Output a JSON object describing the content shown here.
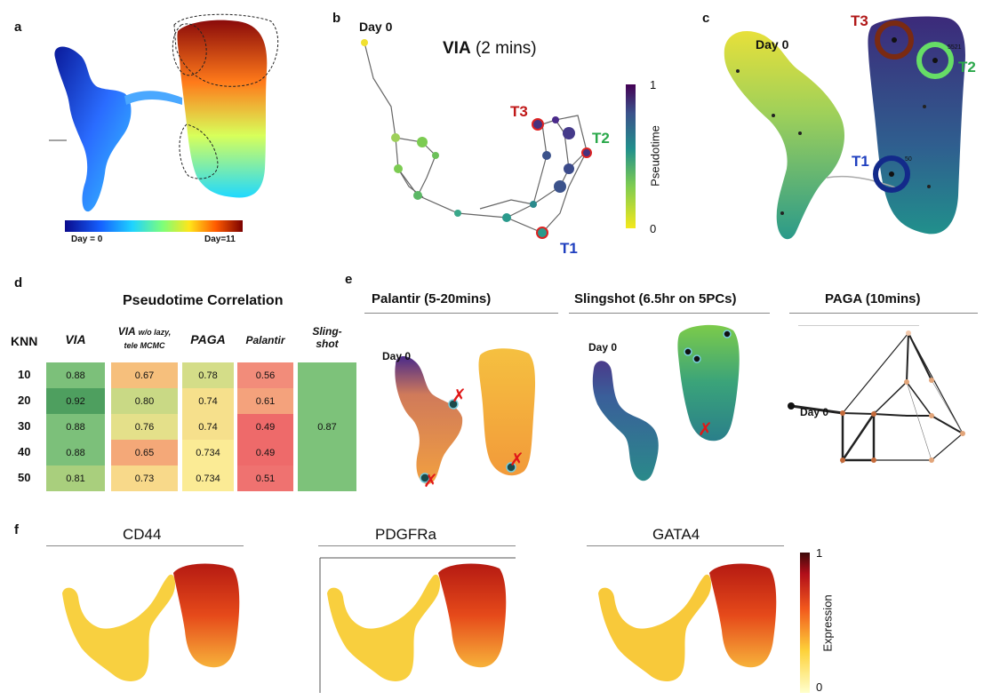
{
  "panels": {
    "a": {
      "label": "a",
      "colorbar_left": "Day = 0",
      "colorbar_right": "Day=11"
    },
    "b": {
      "label": "b",
      "title_bold": "VIA",
      "title_rest": "(2 mins)",
      "start": "Day 0",
      "terminals": [
        "T3",
        "T2",
        "T1"
      ],
      "colorbar_title": "Pseudotime",
      "colorbar_max": "1",
      "colorbar_min": "0"
    },
    "c": {
      "label": "c",
      "start": "Day 0",
      "terminals": [
        "T3",
        "T2",
        "T1"
      ],
      "tiny_labels": [
        "5521",
        "50"
      ]
    },
    "d": {
      "label": "d",
      "title": "Pseudotime Correlation",
      "knn_header": "KNN",
      "col_via": "VIA",
      "col_via2_main": "VIA",
      "col_via2_small1": "w/o lazy,",
      "col_via2_small2": "tele MCMC",
      "col_paga": "PAGA",
      "col_palantir": "Palantir",
      "col_sling1": "Sling-",
      "col_sling2": "shot",
      "rows": [
        {
          "knn": "10",
          "via": "0.88",
          "via2": "0.67",
          "paga": "0.78",
          "palantir": "0.56"
        },
        {
          "knn": "20",
          "via": "0.92",
          "via2": "0.80",
          "paga": "0.74",
          "palantir": "0.61"
        },
        {
          "knn": "30",
          "via": "0.88",
          "via2": "0.76",
          "paga": "0.74",
          "palantir": "0.49"
        },
        {
          "knn": "40",
          "via": "0.88",
          "via2": "0.65",
          "paga": "0.734",
          "palantir": "0.49"
        },
        {
          "knn": "50",
          "via": "0.81",
          "via2": "0.73",
          "paga": "0.734",
          "palantir": "0.51"
        }
      ],
      "slingshot_value": "0.87"
    },
    "e": {
      "label": "e",
      "palantir_title": "Palantir  (5-20mins)",
      "slingshot_title": "Slingshot  (6.5hr on 5PCs)",
      "paga_title": "PAGA  (10mins)",
      "start_palantir": "Day 0",
      "start_slingshot": "Day 0",
      "start_paga": "Day 0"
    },
    "f": {
      "label": "f",
      "gene1": "CD44",
      "gene2": "PDGFRa",
      "gene3": "GATA4",
      "colorbar_title": "Expression",
      "colorbar_max": "1",
      "colorbar_min": "0"
    }
  },
  "colors": {
    "t1": "#1f3fbf",
    "t2": "#2aa84a",
    "t3": "#b01818",
    "via_green_dark": "#5dae6a",
    "via_green": "#8cc78a",
    "orange": "#f6b97b",
    "yellow": "#f6e38f",
    "red": "#ee6a6a"
  }
}
